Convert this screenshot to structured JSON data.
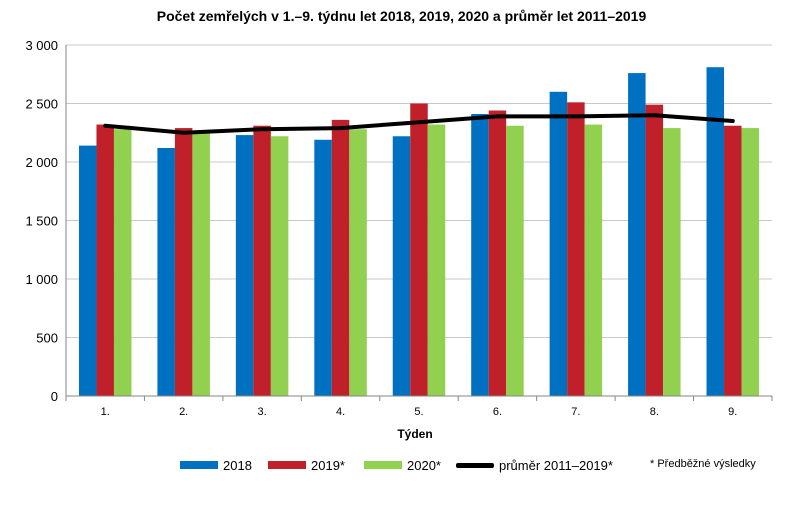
{
  "chart_data": {
    "type": "bar",
    "title": "Počet zemřelých v 1.–9. týdnu let 2018, 2019, 2020 a průměr let 2011–2019",
    "xlabel": "Týden",
    "ylabel": "",
    "ylim": [
      0,
      3000
    ],
    "yticks": [
      0,
      500,
      1000,
      1500,
      2000,
      2500,
      3000
    ],
    "ytick_labels": [
      "0",
      "500",
      "1 000",
      "1 500",
      "2 000",
      "2 500",
      "3 000"
    ],
    "categories": [
      "1.",
      "2.",
      "3.",
      "4.",
      "5.",
      "6.",
      "7.",
      "8.",
      "9."
    ],
    "series": [
      {
        "name": "2018",
        "kind": "bar",
        "color": "#0070C0",
        "values": [
          2140,
          2120,
          2230,
          2190,
          2220,
          2410,
          2600,
          2760,
          2810
        ]
      },
      {
        "name": "2019*",
        "kind": "bar",
        "color": "#C0202A",
        "values": [
          2320,
          2290,
          2310,
          2360,
          2500,
          2440,
          2510,
          2490,
          2310
        ]
      },
      {
        "name": "2020*",
        "kind": "bar",
        "color": "#92D050",
        "values": [
          2280,
          2260,
          2220,
          2280,
          2320,
          2310,
          2320,
          2290,
          2290
        ]
      },
      {
        "name": "průměr 2011–2019*",
        "kind": "line",
        "color": "#000000",
        "values": [
          2310,
          2250,
          2280,
          2290,
          2340,
          2390,
          2390,
          2400,
          2350
        ]
      }
    ],
    "grid": true,
    "legend_position": "bottom",
    "note": "* Předběžné výsledky"
  }
}
